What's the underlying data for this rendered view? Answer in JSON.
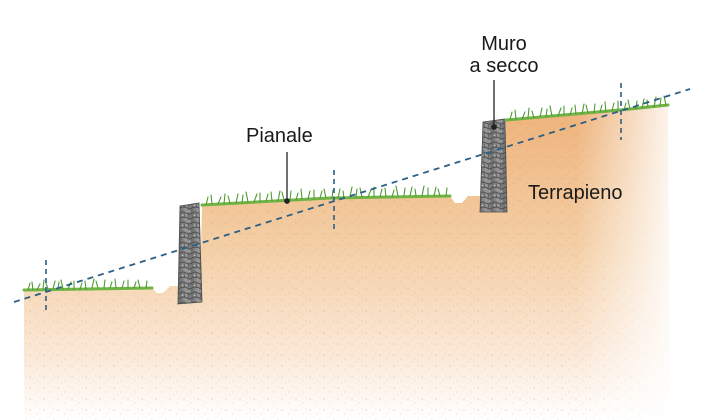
{
  "labels": {
    "pianale": "Pianale",
    "muro_line1": "Muro",
    "muro_line2": "a secco",
    "terrapieno": "Terrapieno"
  },
  "colors": {
    "soil_top": "#eeb27a",
    "soil_mid": "#f6d6b4",
    "soil_bottom": "#ffffff",
    "grass": "#5aa63a",
    "grass_dark": "#3f8a2a",
    "stone_wall": "#8a8a8a",
    "stone_dark": "#5b5b5b",
    "slope_line": "#2b5f86",
    "leader": "#222222"
  },
  "icons": {
    "wall": "dry-stone-wall-icon",
    "grass": "grass-tuft-icon"
  }
}
